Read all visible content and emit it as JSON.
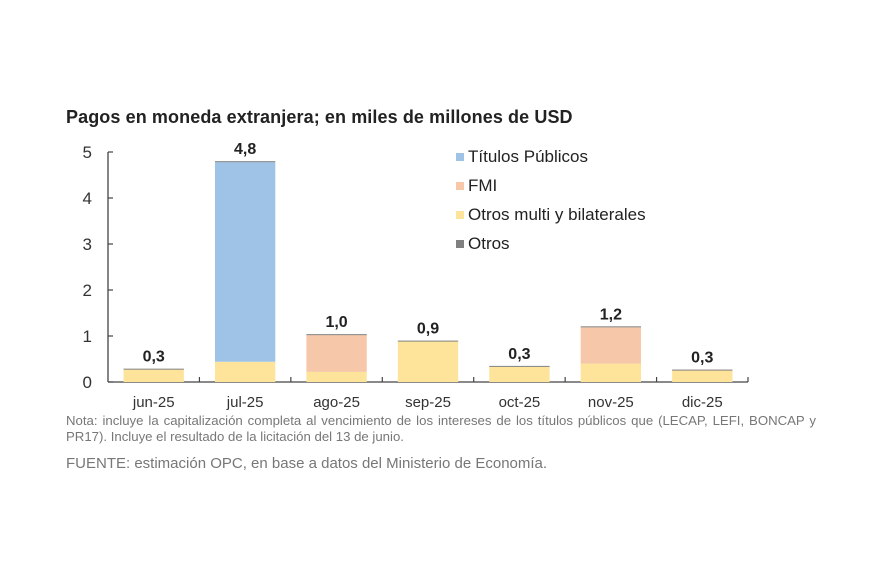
{
  "chart_data": {
    "type": "bar",
    "stacked": true,
    "title": "Pagos en moneda extranjera; en miles de millones de USD",
    "xlabel": "",
    "ylabel": "",
    "ylim": [
      0,
      5
    ],
    "yticks": [
      "0",
      "1",
      "2",
      "3",
      "4",
      "5"
    ],
    "grid": false,
    "legend_position": "top-right",
    "categories": [
      "jun-25",
      "jul-25",
      "ago-25",
      "sep-25",
      "oct-25",
      "nov-25",
      "dic-25"
    ],
    "series": [
      {
        "name": "Otros multi y bilaterales",
        "color": "#fde49a",
        "values": [
          0.27,
          0.44,
          0.22,
          0.88,
          0.33,
          0.4,
          0.25
        ]
      },
      {
        "name": "FMI",
        "color": "#f6c7a9",
        "values": [
          0.0,
          0.0,
          0.8,
          0.0,
          0.0,
          0.79,
          0.0
        ]
      },
      {
        "name": "Títulos Públicos",
        "color": "#9fc3e6",
        "values": [
          0.0,
          4.34,
          0.0,
          0.0,
          0.0,
          0.0,
          0.0
        ]
      },
      {
        "name": "Otros",
        "color": "#808080",
        "values": [
          0.02,
          0.02,
          0.02,
          0.02,
          0.02,
          0.02,
          0.02
        ]
      }
    ],
    "legend_order": [
      "Títulos Públicos",
      "FMI",
      "Otros multi y bilaterales",
      "Otros"
    ],
    "data_labels": [
      "0,3",
      "4,8",
      "1,0",
      "0,9",
      "0,3",
      "1,2",
      "0,3"
    ]
  },
  "note": "Nota: incluye la capitalización completa al vencimiento de los intereses de los títulos públicos que (LECAP, LEFI, BONCAP y PR17). Incluye el resultado de la licitación del 13 de junio.",
  "source": "FUENTE: estimación OPC, en base a datos del Ministerio de Economía."
}
